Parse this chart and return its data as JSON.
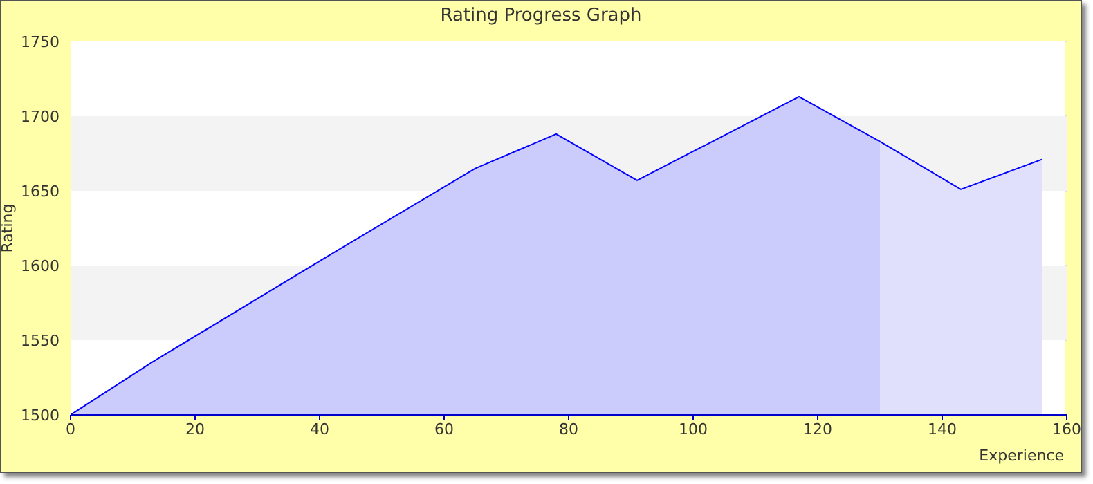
{
  "chart_data": {
    "type": "area",
    "title": "Rating Progress Graph",
    "xlabel": "Experience",
    "ylabel": "Rating",
    "xlim": [
      0,
      160
    ],
    "xticks": [
      0,
      20,
      40,
      60,
      80,
      100,
      120,
      140,
      160
    ],
    "ylim": [
      1500,
      1750
    ],
    "yticks": [
      1500,
      1550,
      1600,
      1650,
      1700,
      1750
    ],
    "grid": "y",
    "bands": [
      {
        "axis": "y",
        "from": 1550,
        "to": 1600,
        "color": "#f3f3f3"
      },
      {
        "axis": "y",
        "from": 1650,
        "to": 1700,
        "color": "#f3f3f3"
      }
    ],
    "series": [
      {
        "color": "#ccccfc",
        "x": [
          0,
          13,
          40,
          65,
          78,
          91,
          117,
          130
        ],
        "values": [
          1500,
          1535,
          1603,
          1665,
          1688,
          1657,
          1713,
          1683
        ]
      },
      {
        "color": "#e0e0fc",
        "x": [
          130,
          143,
          156
        ],
        "values": [
          1683,
          1651,
          1671
        ]
      }
    ]
  }
}
